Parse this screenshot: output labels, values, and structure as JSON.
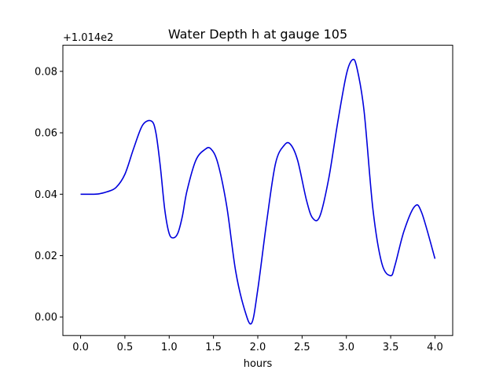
{
  "chart_data": {
    "type": "line",
    "title": "Water Depth h at gauge 105",
    "xlabel": "hours",
    "ylabel": "",
    "y_offset_label": "+1.014e2",
    "xlim": [
      -0.2,
      4.2
    ],
    "ylim": [
      -0.006,
      0.0885
    ],
    "xticks": [
      0.0,
      0.5,
      1.0,
      1.5,
      2.0,
      2.5,
      3.0,
      3.5,
      4.0
    ],
    "xtick_labels": [
      "0.0",
      "0.5",
      "1.0",
      "1.5",
      "2.0",
      "2.5",
      "3.0",
      "3.5",
      "4.0"
    ],
    "yticks": [
      0.0,
      0.02,
      0.04,
      0.06,
      0.08
    ],
    "ytick_labels": [
      "0.00",
      "0.02",
      "0.04",
      "0.06",
      "0.08"
    ],
    "grid": false,
    "line_color": "#0000dd",
    "series": [
      {
        "x": [
          0.0,
          0.1,
          0.2,
          0.3,
          0.4,
          0.5,
          0.6,
          0.7,
          0.8,
          0.85,
          0.9,
          0.95,
          1.0,
          1.05,
          1.1,
          1.15,
          1.2,
          1.3,
          1.4,
          1.47,
          1.55,
          1.65,
          1.75,
          1.85,
          1.93,
          2.0,
          2.1,
          2.2,
          2.3,
          2.37,
          2.45,
          2.55,
          2.62,
          2.7,
          2.8,
          2.9,
          3.0,
          3.07,
          3.12,
          3.2,
          3.3,
          3.4,
          3.5,
          3.55,
          3.65,
          3.77,
          3.85,
          4.0
        ],
        "y": [
          0.04,
          0.04,
          0.0401,
          0.0408,
          0.0422,
          0.0465,
          0.055,
          0.0625,
          0.0638,
          0.06,
          0.049,
          0.035,
          0.0272,
          0.0258,
          0.0275,
          0.033,
          0.041,
          0.051,
          0.0545,
          0.0548,
          0.05,
          0.036,
          0.015,
          0.0025,
          -0.002,
          0.009,
          0.031,
          0.05,
          0.056,
          0.0562,
          0.051,
          0.038,
          0.0322,
          0.0328,
          0.045,
          0.063,
          0.079,
          0.0838,
          0.081,
          0.067,
          0.035,
          0.0175,
          0.0135,
          0.017,
          0.028,
          0.036,
          0.034,
          0.019
        ]
      }
    ]
  }
}
